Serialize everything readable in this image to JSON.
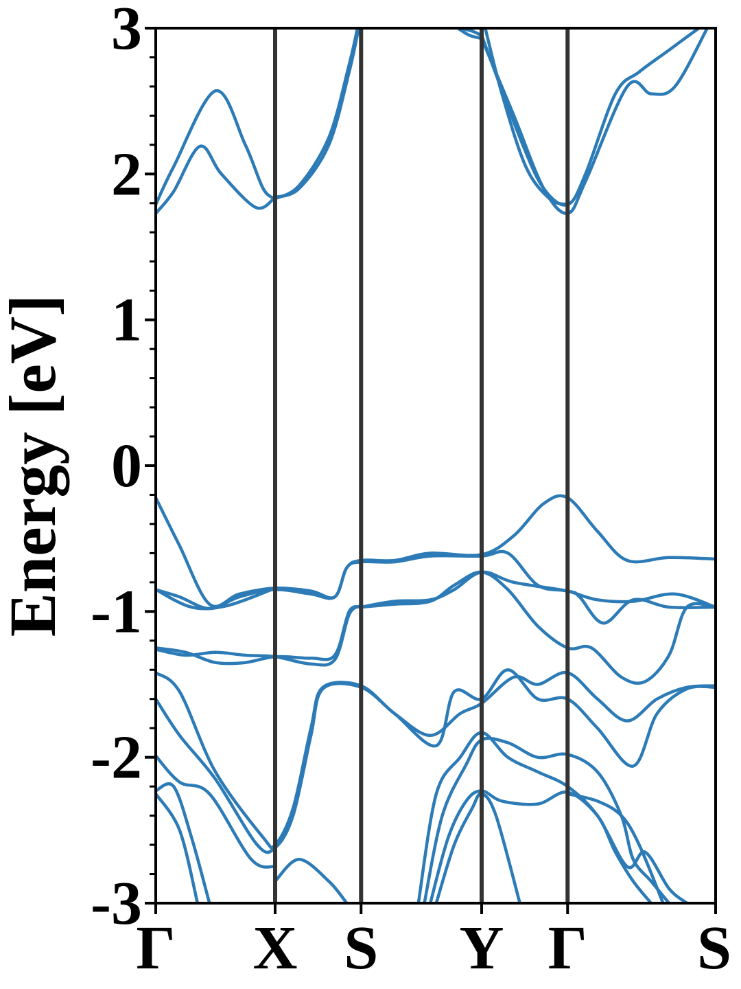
{
  "chart_data": {
    "type": "line",
    "title": "",
    "ylabel": "Energy [eV]",
    "xlabel": "",
    "ylim": [
      -3,
      3
    ],
    "y_ticks": [
      "3",
      "2",
      "1",
      "0",
      "-1",
      "-2",
      "-3"
    ],
    "x_ticks": [
      {
        "label": "Γ",
        "pos": 0.0
      },
      {
        "label": "X",
        "pos": 1.0
      },
      {
        "label": "S",
        "pos": 1.72
      },
      {
        "label": "Y",
        "pos": 2.73
      },
      {
        "label": "Γ",
        "pos": 3.45
      },
      {
        "label": "S",
        "pos": 4.69
      }
    ],
    "xlim": [
      0,
      4.69
    ],
    "grid": false,
    "line_color": "#2c7bb6",
    "series": [
      {
        "values": [
          [
            0.0,
            1.73
          ],
          [
            0.15,
            1.88
          ],
          [
            0.37,
            2.19
          ],
          [
            0.55,
            2.0
          ],
          [
            0.84,
            1.77
          ],
          [
            1.0,
            1.84
          ]
        ]
      },
      {
        "values": [
          [
            0.0,
            1.79
          ],
          [
            0.15,
            2.05
          ],
          [
            0.5,
            2.57
          ],
          [
            0.75,
            2.2
          ],
          [
            0.9,
            1.9
          ],
          [
            1.0,
            1.83
          ]
        ]
      },
      {
        "values": [
          [
            1.0,
            1.84
          ],
          [
            1.2,
            1.9
          ],
          [
            1.45,
            2.2
          ],
          [
            1.62,
            2.7
          ],
          [
            1.7,
            3.0
          ]
        ]
      },
      {
        "values": [
          [
            1.0,
            1.83
          ],
          [
            1.2,
            1.92
          ],
          [
            1.45,
            2.25
          ],
          [
            1.62,
            2.75
          ],
          [
            1.69,
            3.0
          ]
        ]
      },
      {
        "values": [
          [
            2.53,
            3.0
          ],
          [
            2.63,
            2.95
          ],
          [
            2.73,
            2.93
          ]
        ]
      },
      {
        "values": [
          [
            2.55,
            3.0
          ],
          [
            2.65,
            2.98
          ],
          [
            2.73,
            2.95
          ]
        ]
      },
      {
        "values": [
          [
            2.73,
            2.93
          ],
          [
            3.0,
            2.4
          ],
          [
            3.25,
            1.9
          ],
          [
            3.45,
            1.73
          ],
          [
            3.6,
            1.95
          ],
          [
            3.95,
            2.6
          ],
          [
            4.15,
            2.55
          ],
          [
            4.35,
            2.6
          ],
          [
            4.62,
            3.0
          ]
        ]
      },
      {
        "values": [
          [
            2.73,
            2.95
          ],
          [
            3.05,
            2.25
          ],
          [
            3.25,
            1.9
          ],
          [
            3.45,
            1.79
          ],
          [
            3.6,
            2.0
          ],
          [
            3.85,
            2.55
          ],
          [
            4.05,
            2.7
          ],
          [
            4.3,
            2.85
          ],
          [
            4.55,
            3.0
          ]
        ]
      },
      {
        "values": [
          [
            2.76,
            3.0
          ],
          [
            2.9,
            2.55
          ],
          [
            3.1,
            2.05
          ],
          [
            3.3,
            1.83
          ],
          [
            3.45,
            1.79
          ]
        ]
      },
      {
        "values": [
          [
            0.0,
            -0.22
          ],
          [
            0.2,
            -0.55
          ],
          [
            0.45,
            -0.95
          ],
          [
            0.7,
            -0.88
          ],
          [
            1.0,
            -0.84
          ],
          [
            1.3,
            -0.86
          ],
          [
            1.5,
            -0.9
          ],
          [
            1.6,
            -0.7
          ],
          [
            1.72,
            -0.65
          ],
          [
            2.0,
            -0.65
          ],
          [
            2.3,
            -0.6
          ],
          [
            2.73,
            -0.61
          ],
          [
            3.0,
            -0.48
          ],
          [
            3.25,
            -0.26
          ],
          [
            3.45,
            -0.22
          ],
          [
            3.7,
            -0.45
          ],
          [
            3.95,
            -0.65
          ],
          [
            4.3,
            -0.63
          ],
          [
            4.69,
            -0.64
          ]
        ]
      },
      {
        "values": [
          [
            0.0,
            -0.85
          ],
          [
            0.2,
            -0.9
          ],
          [
            0.45,
            -0.98
          ],
          [
            0.7,
            -0.9
          ],
          [
            1.0,
            -0.85
          ],
          [
            1.3,
            -0.88
          ],
          [
            1.5,
            -0.9
          ],
          [
            1.6,
            -0.7
          ],
          [
            1.72,
            -0.66
          ],
          [
            2.0,
            -0.66
          ],
          [
            2.3,
            -0.62
          ],
          [
            2.73,
            -0.62
          ],
          [
            2.95,
            -0.6
          ],
          [
            3.2,
            -0.82
          ],
          [
            3.45,
            -0.86
          ],
          [
            3.7,
            -0.92
          ],
          [
            4.0,
            -0.93
          ],
          [
            4.35,
            -0.88
          ],
          [
            4.69,
            -0.97
          ]
        ]
      },
      {
        "values": [
          [
            0.0,
            -0.85
          ],
          [
            0.3,
            -0.97
          ],
          [
            0.6,
            -0.96
          ],
          [
            1.0,
            -0.84
          ]
        ]
      },
      {
        "values": [
          [
            1.72,
            -0.97
          ],
          [
            2.0,
            -0.93
          ],
          [
            2.3,
            -0.92
          ],
          [
            2.5,
            -0.85
          ],
          [
            2.73,
            -0.73
          ],
          [
            3.0,
            -0.8
          ],
          [
            3.45,
            -0.86
          ],
          [
            3.55,
            -0.9
          ],
          [
            3.75,
            -1.08
          ],
          [
            4.0,
            -0.92
          ],
          [
            4.3,
            -0.97
          ],
          [
            4.69,
            -0.97
          ]
        ]
      },
      {
        "values": [
          [
            1.72,
            -0.97
          ],
          [
            2.0,
            -0.95
          ],
          [
            2.3,
            -0.93
          ],
          [
            2.5,
            -0.82
          ],
          [
            2.73,
            -0.73
          ],
          [
            2.95,
            -0.85
          ],
          [
            3.2,
            -1.1
          ],
          [
            3.45,
            -1.25
          ],
          [
            3.65,
            -1.25
          ],
          [
            3.9,
            -1.45
          ],
          [
            4.1,
            -1.48
          ],
          [
            4.3,
            -1.3
          ],
          [
            4.45,
            -0.97
          ],
          [
            4.69,
            -0.97
          ]
        ]
      },
      {
        "values": [
          [
            0.0,
            -1.25
          ],
          [
            0.25,
            -1.28
          ],
          [
            0.5,
            -1.35
          ],
          [
            0.75,
            -1.35
          ],
          [
            1.0,
            -1.31
          ],
          [
            1.3,
            -1.32
          ],
          [
            1.5,
            -1.3
          ],
          [
            1.62,
            -1.0
          ],
          [
            1.72,
            -0.97
          ]
        ]
      },
      {
        "values": [
          [
            0.0,
            -1.26
          ],
          [
            0.25,
            -1.3
          ],
          [
            0.5,
            -1.28
          ],
          [
            0.75,
            -1.3
          ],
          [
            1.0,
            -1.31
          ],
          [
            1.3,
            -1.36
          ],
          [
            1.5,
            -1.33
          ],
          [
            1.62,
            -1.02
          ],
          [
            1.72,
            -0.96
          ]
        ]
      },
      {
        "values": [
          [
            0.0,
            -1.42
          ],
          [
            0.2,
            -1.55
          ],
          [
            0.5,
            -2.1
          ],
          [
            0.9,
            -2.55
          ],
          [
            1.0,
            -2.6
          ],
          [
            1.15,
            -2.35
          ],
          [
            1.3,
            -1.8
          ],
          [
            1.4,
            -1.52
          ],
          [
            1.72,
            -1.51
          ],
          [
            2.0,
            -1.7
          ],
          [
            2.3,
            -1.85
          ],
          [
            2.55,
            -1.7
          ],
          [
            2.73,
            -1.63
          ],
          [
            3.0,
            -1.45
          ],
          [
            3.2,
            -1.5
          ],
          [
            3.45,
            -1.42
          ],
          [
            3.7,
            -1.6
          ],
          [
            3.95,
            -1.75
          ],
          [
            4.2,
            -1.6
          ],
          [
            4.45,
            -1.52
          ],
          [
            4.69,
            -1.51
          ]
        ]
      },
      {
        "values": [
          [
            0.0,
            -1.6
          ],
          [
            0.2,
            -1.85
          ],
          [
            0.5,
            -2.15
          ],
          [
            0.85,
            -2.6
          ],
          [
            1.0,
            -2.62
          ],
          [
            1.15,
            -2.4
          ],
          [
            1.3,
            -1.85
          ],
          [
            1.4,
            -1.53
          ],
          [
            1.72,
            -1.52
          ],
          [
            2.0,
            -1.7
          ],
          [
            2.35,
            -1.92
          ],
          [
            2.5,
            -1.55
          ],
          [
            2.73,
            -1.6
          ],
          [
            2.95,
            -1.4
          ],
          [
            3.2,
            -1.6
          ],
          [
            3.45,
            -1.6
          ],
          [
            3.7,
            -1.8
          ],
          [
            4.0,
            -2.06
          ],
          [
            4.2,
            -1.7
          ],
          [
            4.45,
            -1.53
          ],
          [
            4.69,
            -1.52
          ]
        ]
      },
      {
        "values": [
          [
            0.0,
            -1.99
          ],
          [
            0.2,
            -2.17
          ],
          [
            0.45,
            -2.25
          ],
          [
            0.8,
            -2.7
          ],
          [
            1.0,
            -2.75
          ]
        ]
      },
      {
        "values": [
          [
            0.0,
            -2.23
          ],
          [
            0.15,
            -2.2
          ],
          [
            0.3,
            -2.55
          ],
          [
            0.45,
            -3.0
          ]
        ]
      },
      {
        "values": [
          [
            0.0,
            -2.25
          ],
          [
            0.2,
            -2.5
          ],
          [
            0.35,
            -3.0
          ]
        ]
      },
      {
        "values": [
          [
            1.0,
            -2.85
          ],
          [
            1.2,
            -2.7
          ],
          [
            1.45,
            -2.85
          ],
          [
            1.6,
            -3.0
          ]
        ]
      },
      {
        "values": [
          [
            2.2,
            -3.0
          ],
          [
            2.35,
            -2.25
          ],
          [
            2.55,
            -2.0
          ],
          [
            2.73,
            -1.83
          ],
          [
            2.95,
            -2.0
          ],
          [
            3.2,
            -2.1
          ],
          [
            3.45,
            -2.2
          ],
          [
            3.7,
            -2.4
          ],
          [
            3.95,
            -2.75
          ],
          [
            4.1,
            -2.65
          ],
          [
            4.3,
            -2.9
          ],
          [
            4.45,
            -3.0
          ]
        ]
      },
      {
        "values": [
          [
            2.25,
            -3.0
          ],
          [
            2.4,
            -2.4
          ],
          [
            2.6,
            -2.05
          ],
          [
            2.73,
            -1.88
          ],
          [
            2.95,
            -1.9
          ],
          [
            3.2,
            -2.0
          ],
          [
            3.45,
            -1.98
          ],
          [
            3.7,
            -2.1
          ],
          [
            3.9,
            -2.4
          ],
          [
            4.0,
            -2.7
          ],
          [
            4.15,
            -2.85
          ],
          [
            4.3,
            -3.0
          ]
        ]
      },
      {
        "values": [
          [
            2.3,
            -3.0
          ],
          [
            2.45,
            -2.55
          ],
          [
            2.6,
            -2.3
          ],
          [
            2.73,
            -2.23
          ],
          [
            2.9,
            -2.3
          ],
          [
            3.2,
            -2.32
          ],
          [
            3.45,
            -2.24
          ],
          [
            3.7,
            -2.4
          ],
          [
            3.85,
            -2.65
          ],
          [
            4.0,
            -2.85
          ],
          [
            4.15,
            -3.0
          ]
        ]
      },
      {
        "values": [
          [
            2.35,
            -3.0
          ],
          [
            2.5,
            -2.6
          ],
          [
            2.65,
            -2.35
          ],
          [
            2.73,
            -2.25
          ],
          [
            2.85,
            -2.4
          ],
          [
            3.05,
            -3.0
          ]
        ]
      },
      {
        "values": [
          [
            3.45,
            -2.25
          ],
          [
            3.7,
            -2.3
          ],
          [
            3.9,
            -2.4
          ],
          [
            4.05,
            -2.6
          ],
          [
            4.25,
            -3.0
          ]
        ]
      }
    ]
  }
}
